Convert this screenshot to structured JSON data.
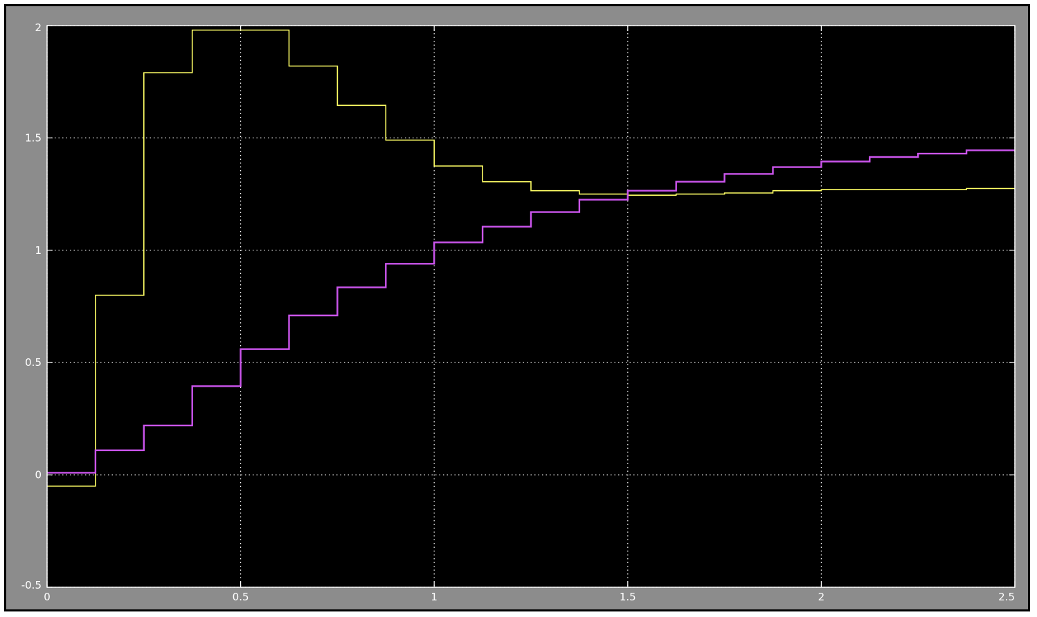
{
  "chart_data": {
    "type": "line",
    "step": true,
    "title": "",
    "xlabel": "",
    "ylabel": "",
    "xlim": [
      0,
      2.5
    ],
    "ylim": [
      -0.5,
      2
    ],
    "grid": true,
    "legend": "none",
    "x_ticks": [
      "0",
      "0.5",
      "1",
      "1.5",
      "2",
      "2.5"
    ],
    "y_ticks": [
      "-0.5",
      "0",
      "0.5",
      "1",
      "1.5",
      "2"
    ],
    "colors": {
      "frame": "#8c8c8c",
      "plot_background": "#000000",
      "grid": "#ffffff",
      "tick_label": "#ffffff"
    },
    "series": [
      {
        "color": "#ffff66",
        "points": [
          [
            0,
            -0.05
          ],
          [
            0.125,
            0.8
          ],
          [
            0.25,
            1.79
          ],
          [
            0.375,
            1.98
          ],
          [
            0.5,
            1.98
          ],
          [
            0.625,
            1.82
          ],
          [
            0.75,
            1.645
          ],
          [
            0.875,
            1.49
          ],
          [
            1.0,
            1.375
          ],
          [
            1.125,
            1.305
          ],
          [
            1.25,
            1.265
          ],
          [
            1.375,
            1.25
          ],
          [
            1.5,
            1.245
          ],
          [
            1.625,
            1.25
          ],
          [
            1.75,
            1.255
          ],
          [
            1.875,
            1.265
          ],
          [
            2.0,
            1.27
          ],
          [
            2.375,
            1.275
          ],
          [
            2.5,
            1.275
          ]
        ]
      },
      {
        "color": "#cc55ee",
        "points": [
          [
            0,
            0.01
          ],
          [
            0.125,
            0.11
          ],
          [
            0.25,
            0.22
          ],
          [
            0.375,
            0.395
          ],
          [
            0.5,
            0.56
          ],
          [
            0.625,
            0.71
          ],
          [
            0.75,
            0.835
          ],
          [
            0.875,
            0.94
          ],
          [
            1.0,
            1.035
          ],
          [
            1.125,
            1.105
          ],
          [
            1.25,
            1.17
          ],
          [
            1.375,
            1.225
          ],
          [
            1.5,
            1.265
          ],
          [
            1.625,
            1.305
          ],
          [
            1.75,
            1.34
          ],
          [
            1.875,
            1.37
          ],
          [
            2.0,
            1.395
          ],
          [
            2.125,
            1.415
          ],
          [
            2.25,
            1.43
          ],
          [
            2.375,
            1.445
          ],
          [
            2.5,
            1.445
          ]
        ]
      }
    ]
  }
}
